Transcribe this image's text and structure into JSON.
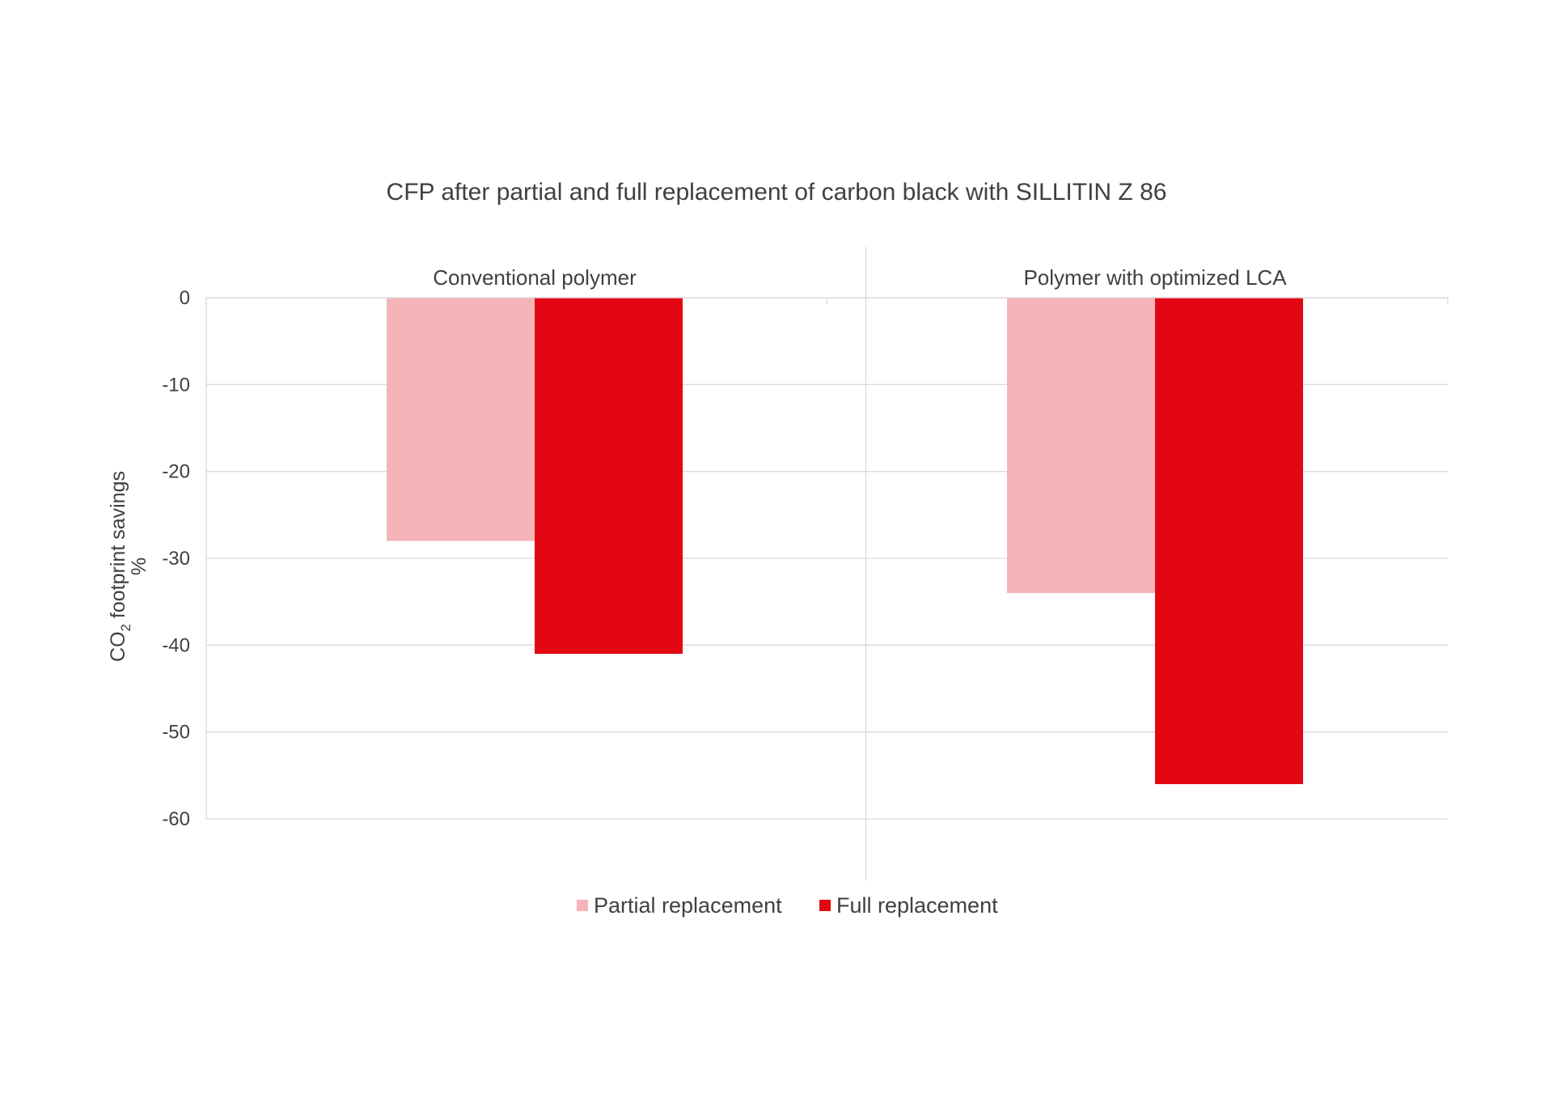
{
  "chart_data": {
    "type": "bar",
    "title": "CFP after partial and full replacement of carbon black with SILLITIN Z 86",
    "categories": [
      "Conventional polymer",
      "Polymer with optimized LCA"
    ],
    "series": [
      {
        "name": "Partial replacement",
        "values": [
          -28,
          -34
        ],
        "color": "#f4b4b8"
      },
      {
        "name": "Full replacement",
        "values": [
          -41,
          -56
        ],
        "color": "#e30613"
      }
    ],
    "ylabel_prefix": "CO",
    "ylabel_subscript": "2",
    "ylabel_suffix": " footprint savings",
    "ylabel_unit": "%",
    "ylim": [
      -60,
      0
    ],
    "yticks": [
      0,
      -10,
      -20,
      -30,
      -40,
      -50,
      -60
    ],
    "ytick_labels": [
      "0",
      "-10",
      "-20",
      "-30",
      "-40",
      "-50",
      "-60"
    ],
    "grid": true,
    "legend_position": "bottom"
  }
}
